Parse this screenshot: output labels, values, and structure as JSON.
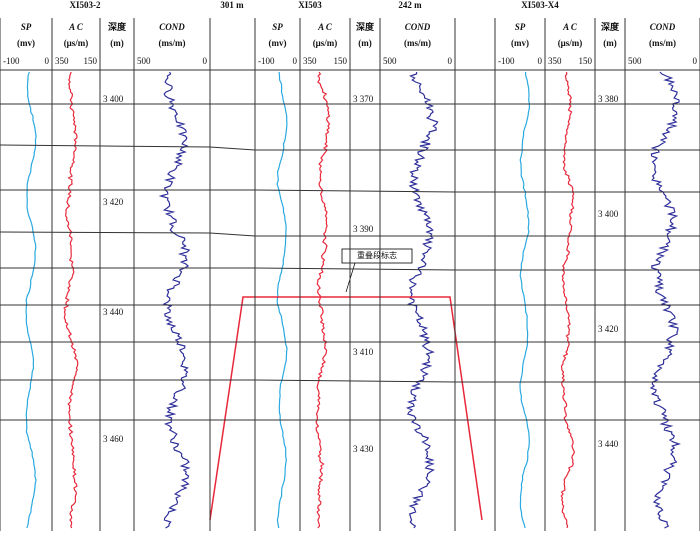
{
  "wells": [
    {
      "name": "XI503-2",
      "depths": [
        "3 400",
        "3 420",
        "3 440",
        "3 460"
      ]
    },
    {
      "name": "XI503",
      "depths": [
        "3 370",
        "3 390",
        "3 410",
        "3 430"
      ]
    },
    {
      "name": "XI503-X4",
      "depths": [
        "3 380",
        "3 400",
        "3 420",
        "3 440"
      ]
    }
  ],
  "spacings": [
    "301 m",
    "242 m"
  ],
  "tracks": {
    "sp": {
      "name": "SP",
      "unit": "(mv)",
      "left": "-100",
      "right": "0"
    },
    "ac": {
      "name": "A C",
      "unit": "(μs/m)",
      "left": "350",
      "right": "150"
    },
    "depth": {
      "name": "深度",
      "unit": "(m)"
    },
    "cond": {
      "name": "COND",
      "unit": "(ms/m)",
      "left": "500",
      "right": "0"
    }
  },
  "annotation": "重叠段标志"
}
